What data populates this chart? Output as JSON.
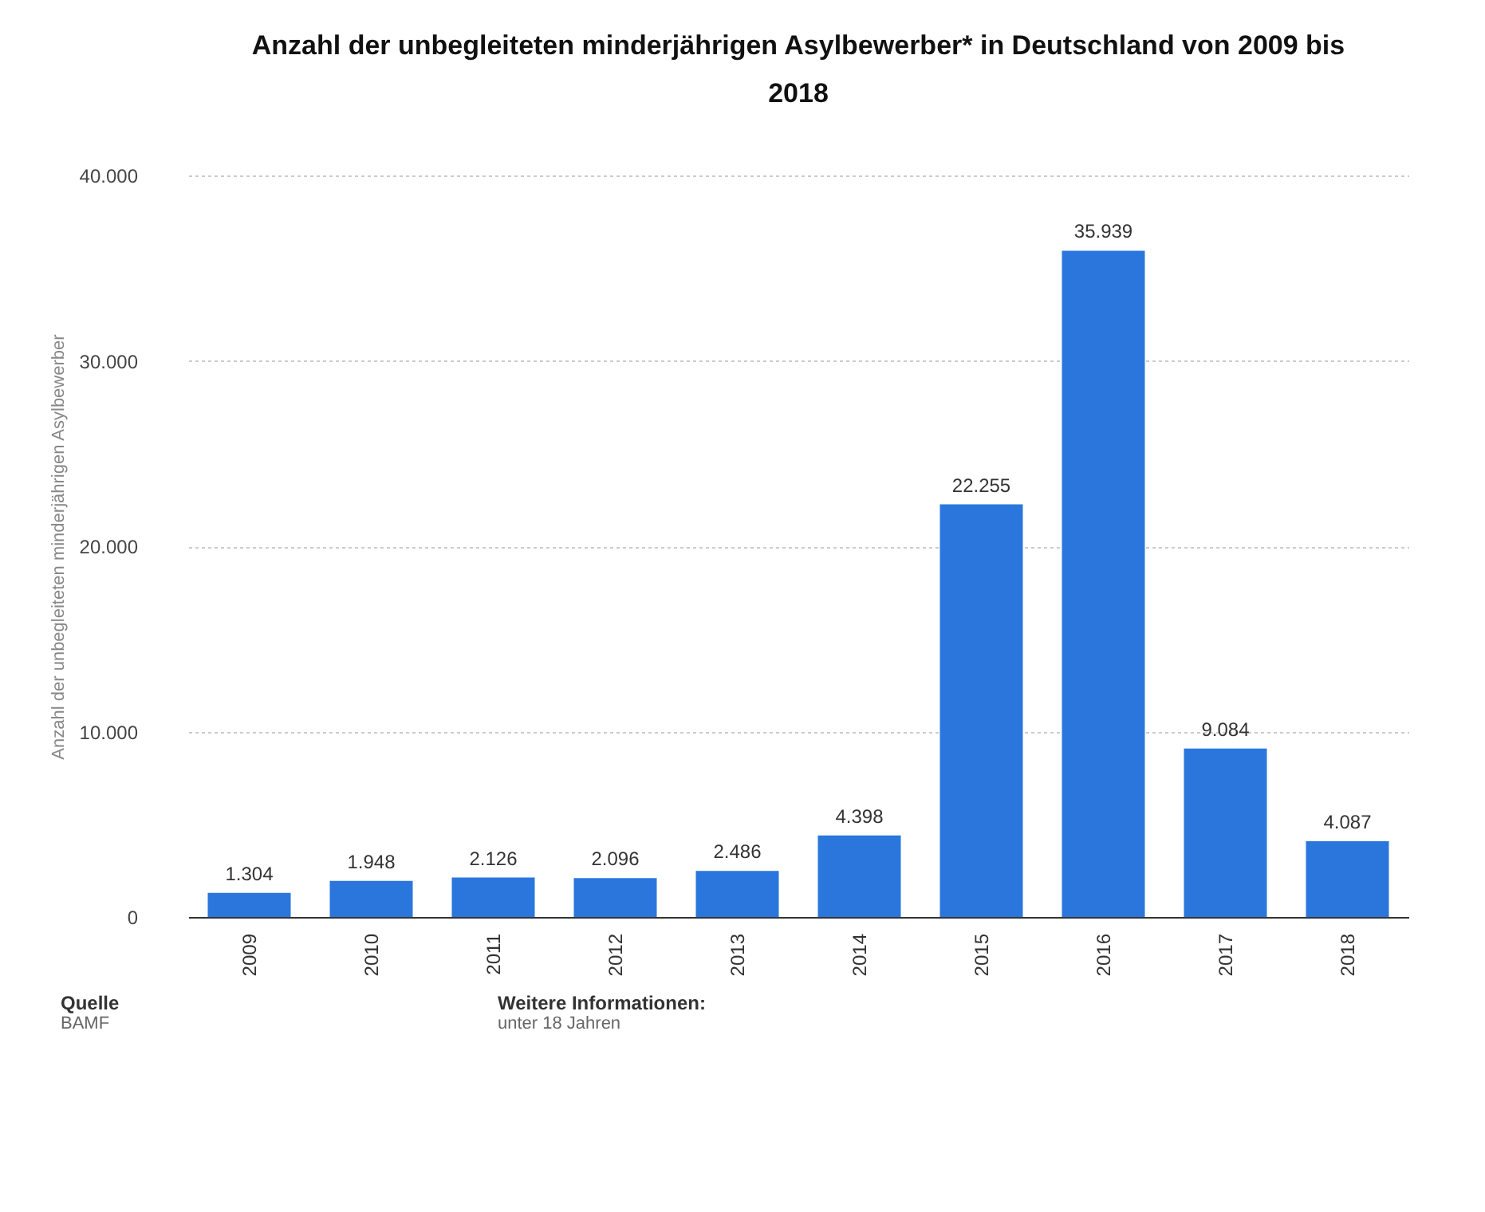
{
  "chart_data": {
    "type": "bar",
    "title": "Anzahl der unbegleiteten minderjährigen Asylbewerber* in Deutschland von 2009 bis 2018",
    "ylabel": "Anzahl der unbegleiteten minderjährigen Asylbewerber",
    "categories": [
      "2009",
      "2010",
      "2011",
      "2012",
      "2013",
      "2014",
      "2015",
      "2016",
      "2017",
      "2018"
    ],
    "values": [
      1304,
      1948,
      2126,
      2096,
      2486,
      4398,
      22255,
      35939,
      9084,
      4087
    ],
    "value_labels": [
      "1.304",
      "1.948",
      "2.126",
      "2.096",
      "2.486",
      "4.398",
      "22.255",
      "35.939",
      "9.084",
      "4.087"
    ],
    "color": "#2a76dd",
    "ylim": [
      0,
      40000
    ],
    "yticks": [
      {
        "value": 0,
        "label": "0"
      },
      {
        "value": 10000,
        "label": "10.000"
      },
      {
        "value": 20000,
        "label": "20.000"
      },
      {
        "value": 30000,
        "label": "30.000"
      },
      {
        "value": 40000,
        "label": "40.000"
      }
    ],
    "grid": "y",
    "annotations": [
      "Quelle",
      "BAMF",
      "Weitere Informationen:",
      "unter 18 Jahren"
    ]
  }
}
